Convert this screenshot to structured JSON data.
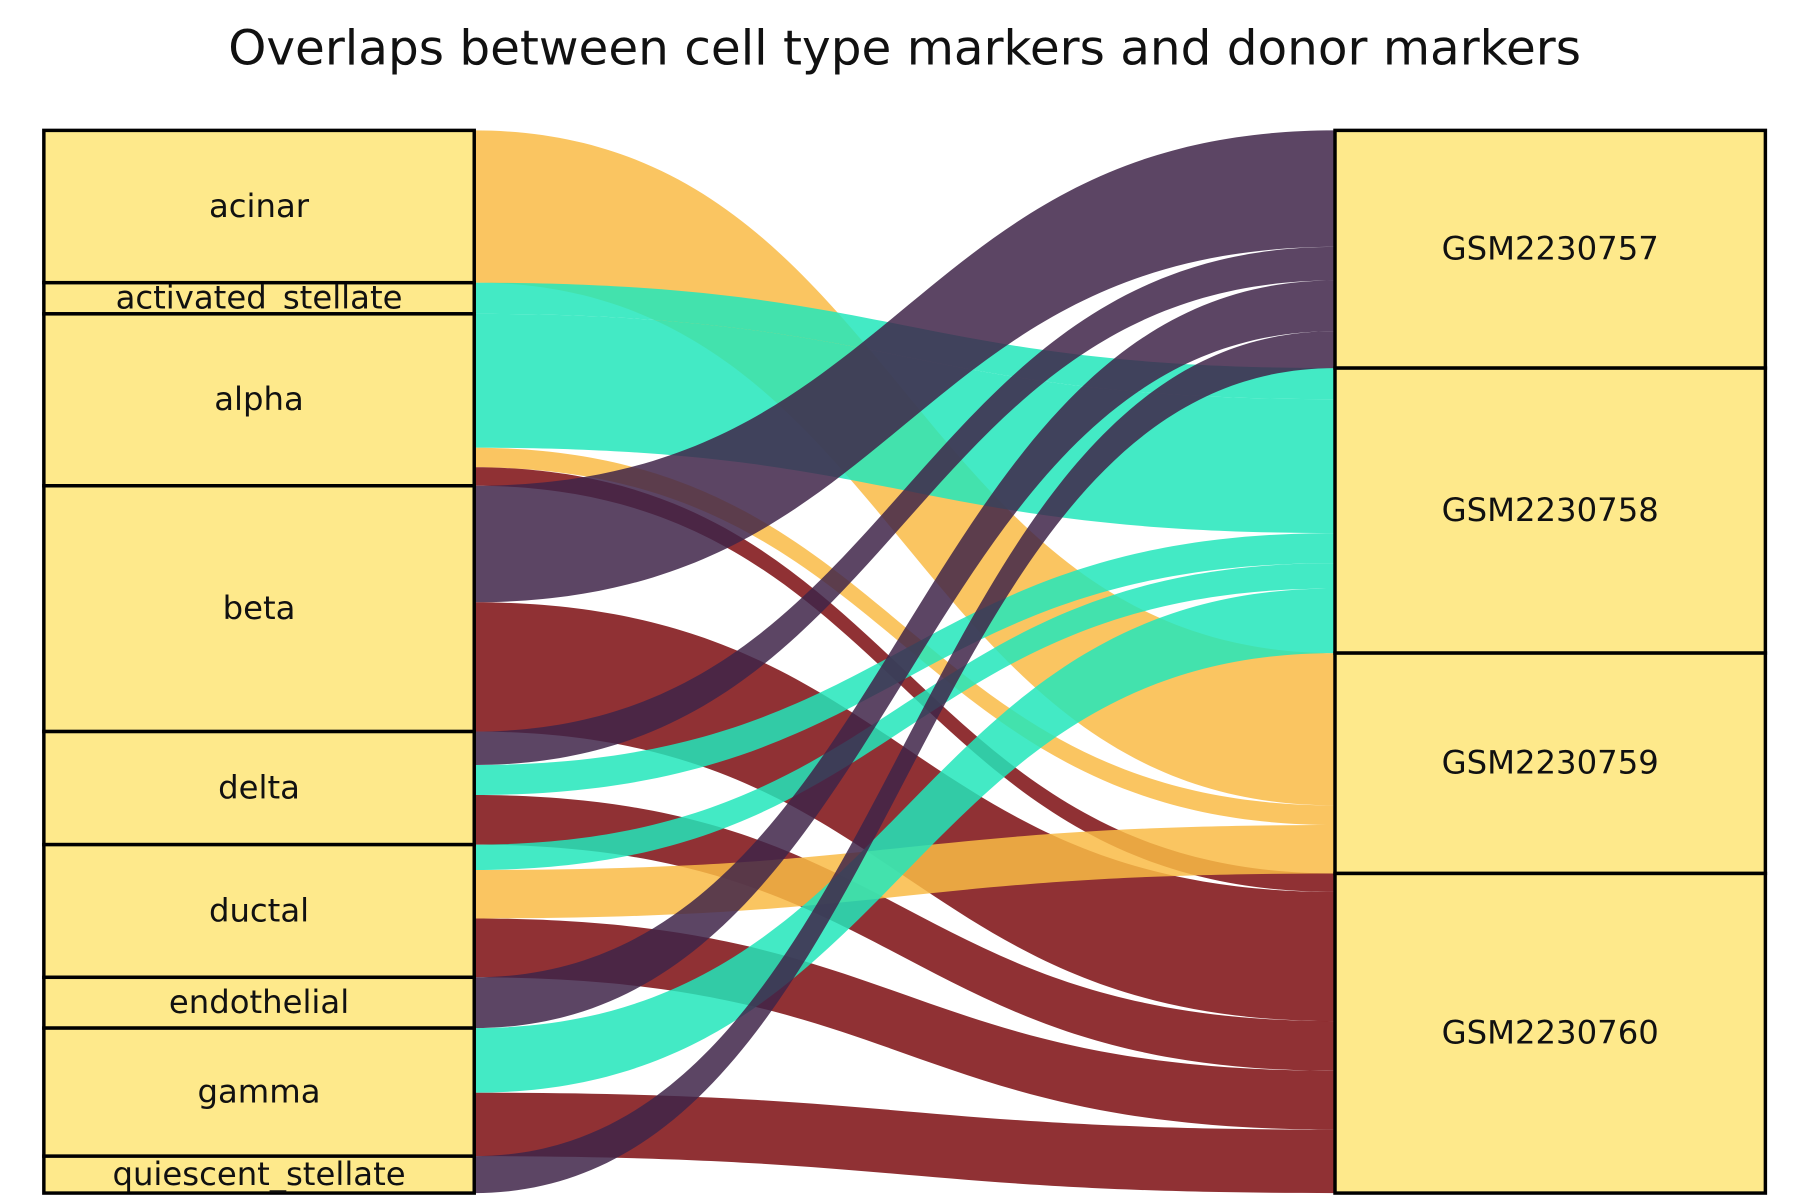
{
  "title": "Overlaps between cell type markers and donor markers",
  "chart_data": {
    "type": "sankey",
    "title": "Overlaps between cell type markers and donor markers",
    "sources": [
      "acinar",
      "activated_stellate",
      "alpha",
      "beta",
      "delta",
      "ductal",
      "endothelial",
      "gamma",
      "quiescent_stellate"
    ],
    "targets": [
      "GSM2230757",
      "GSM2230758",
      "GSM2230759",
      "GSM2230760"
    ],
    "target_colors": {
      "GSM2230757": "#3f2449",
      "GSM2230758": "#22e6bb",
      "GSM2230759": "#f9bb45",
      "GSM2230760": "#7c0d10"
    },
    "node_color": "#fee98b",
    "links": [
      {
        "source": "acinar",
        "target": "GSM2230759",
        "value": 132
      },
      {
        "source": "activated_stellate",
        "target": "GSM2230758",
        "value": 27
      },
      {
        "source": "alpha",
        "target": "GSM2230758",
        "value": 116
      },
      {
        "source": "alpha",
        "target": "GSM2230759",
        "value": 17
      },
      {
        "source": "alpha",
        "target": "GSM2230760",
        "value": 16
      },
      {
        "source": "beta",
        "target": "GSM2230757",
        "value": 101
      },
      {
        "source": "beta",
        "target": "GSM2230760",
        "value": 112
      },
      {
        "source": "delta",
        "target": "GSM2230757",
        "value": 29
      },
      {
        "source": "delta",
        "target": "GSM2230758",
        "value": 26
      },
      {
        "source": "delta",
        "target": "GSM2230760",
        "value": 43
      },
      {
        "source": "ductal",
        "target": "GSM2230758",
        "value": 22
      },
      {
        "source": "ductal",
        "target": "GSM2230759",
        "value": 42
      },
      {
        "source": "ductal",
        "target": "GSM2230760",
        "value": 51
      },
      {
        "source": "endothelial",
        "target": "GSM2230757",
        "value": 44
      },
      {
        "source": "gamma",
        "target": "GSM2230758",
        "value": 56
      },
      {
        "source": "gamma",
        "target": "GSM2230760",
        "value": 55
      },
      {
        "source": "quiescent_stellate",
        "target": "GSM2230757",
        "value": 32
      }
    ]
  }
}
